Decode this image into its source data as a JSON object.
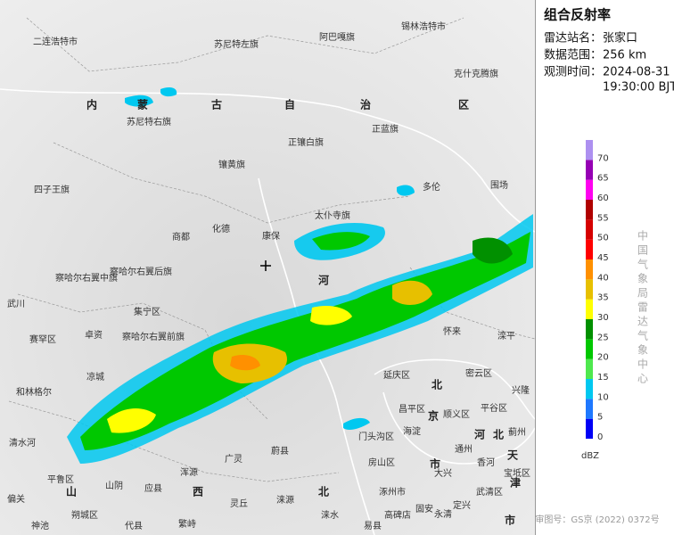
{
  "header": {
    "title": "组合反射率"
  },
  "info": [
    {
      "label": "雷达站名：",
      "value": "张家口"
    },
    {
      "label": "数据范围：",
      "value": "256 km"
    },
    {
      "label": "观测时间：",
      "value": "2024-08-31",
      "value2": "19:30:00 BJT"
    }
  ],
  "legend": {
    "unit": "dBZ",
    "entries": [
      {
        "value": 0,
        "color": "#0000f6"
      },
      {
        "value": 5,
        "color": "#1e78ff"
      },
      {
        "value": 10,
        "color": "#00c8f0"
      },
      {
        "value": 15,
        "color": "#4ee84e"
      },
      {
        "value": 20,
        "color": "#00c800"
      },
      {
        "value": 25,
        "color": "#019000"
      },
      {
        "value": 30,
        "color": "#ffff00"
      },
      {
        "value": 35,
        "color": "#e7c000"
      },
      {
        "value": 40,
        "color": "#ff9000"
      },
      {
        "value": 45,
        "color": "#ff0000"
      },
      {
        "value": 50,
        "color": "#d60000"
      },
      {
        "value": 55,
        "color": "#b00000"
      },
      {
        "value": 60,
        "color": "#ff00f0"
      },
      {
        "value": 65,
        "color": "#9600b4"
      },
      {
        "value": 70,
        "color": "#ad90f0"
      }
    ]
  },
  "watermark": "中国气象局雷达气象中心",
  "footer": "审图号：GS京 (2022) 0372号",
  "map": {
    "labels": [
      "二连浩特市",
      "苏尼特左旗",
      "阿巴嘎旗",
      "锡林浩特市",
      "克什克腾旗",
      "内",
      "蒙",
      "古",
      "自",
      "治",
      "区",
      "苏尼特右旗",
      "正镶白旗",
      "正蓝旗",
      "镶黄旗",
      "四子王旗",
      "多伦",
      "围场",
      "商都",
      "化德",
      "康保",
      "太仆寺旗",
      "察哈尔右翼中旗",
      "察哈尔右翼后旗",
      "河",
      "武川",
      "集宁区",
      "赛罕区",
      "卓资",
      "察哈尔右翼前旗",
      "凉城",
      "和林格尔",
      "清水河",
      "怀来",
      "滦平",
      "延庆区",
      "密云区",
      "兴隆",
      "北",
      "平谷区",
      "昌平区",
      "顺义区",
      "蓟州",
      "门头沟区",
      "海淀",
      "京",
      "市",
      "通州",
      "河",
      "北",
      "天",
      "津",
      "宝坻区",
      "房山区",
      "香河",
      "武清区",
      "大兴",
      "涿州市",
      "高碑店",
      "固安",
      "永清",
      "定兴",
      "易县",
      "涞水",
      "涞源",
      "蔚县",
      "广灵",
      "浑源",
      "灵丘",
      "应县",
      "山阴",
      "平鲁区",
      "偏关",
      "朔城区",
      "神池",
      "代县",
      "繁峙",
      "山",
      "西",
      "北",
      "市"
    ]
  }
}
